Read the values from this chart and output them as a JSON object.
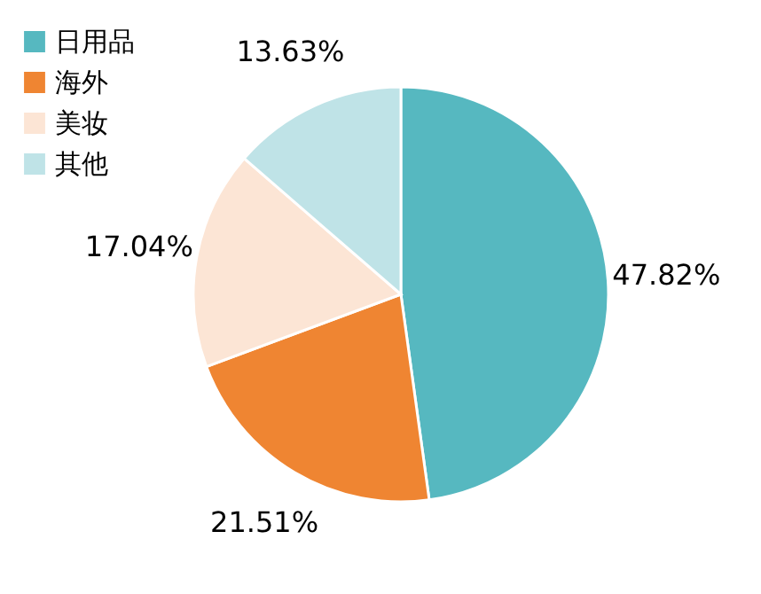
{
  "chart_data": {
    "type": "pie",
    "categories": [
      "日用品",
      "海外",
      "美妆",
      "其他"
    ],
    "values": [
      47.82,
      21.51,
      17.04,
      13.63
    ],
    "colors": [
      "#56b8c0",
      "#ef8532",
      "#fce5d5",
      "#bfe3e7"
    ],
    "value_labels": [
      "47.82%",
      "21.51%",
      "17.04%",
      "13.63%"
    ],
    "legend": "left"
  }
}
